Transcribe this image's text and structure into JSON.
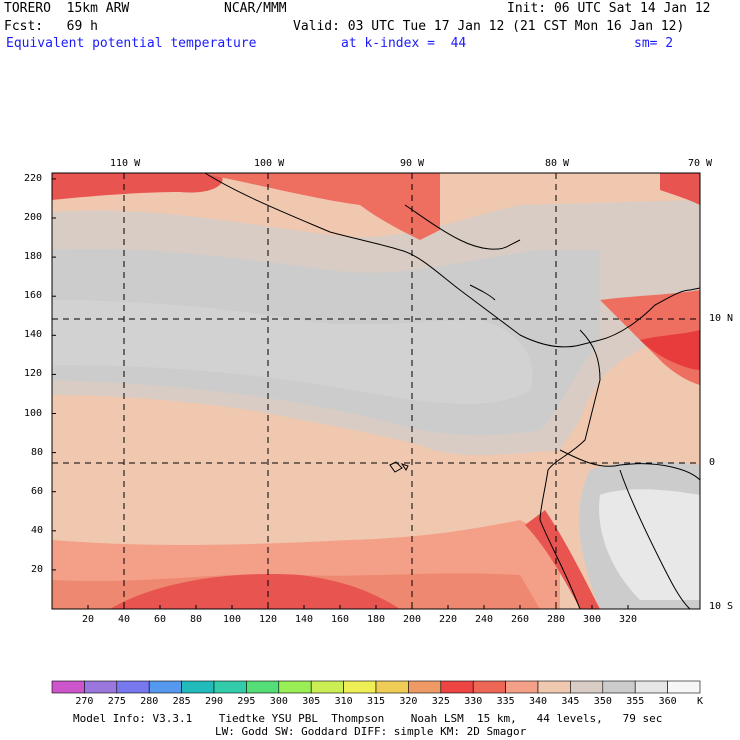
{
  "header": {
    "model": "TORERO  15km ARW",
    "center": "NCAR/MMM",
    "init": "Init: 06 UTC Sat 14 Jan 12",
    "fcst": "Fcst:   69 h",
    "valid": "Valid: 03 UTC Tue 17 Jan 12 (21 CST Mon 16 Jan 12)",
    "field": "Equivalent potential temperature",
    "level": "at k-index =  44",
    "smooth": "sm= 2"
  },
  "map": {
    "top_lon_labels": [
      "110 W",
      "100 W",
      "90 W",
      "80 W",
      "70 W"
    ],
    "right_lat_labels": [
      "10 N",
      "0",
      "10 S"
    ],
    "y_grid_labels": [
      "220",
      "200",
      "180",
      "160",
      "140",
      "120",
      "100",
      "80",
      "60",
      "40",
      "20"
    ],
    "x_grid_labels": [
      "20",
      "40",
      "60",
      "80",
      "100",
      "120",
      "140",
      "160",
      "180",
      "200",
      "220",
      "240",
      "260",
      "280",
      "300",
      "320"
    ]
  },
  "colorbar": {
    "unit": "K",
    "levels": [
      "270",
      "275",
      "280",
      "285",
      "290",
      "295",
      "300",
      "305",
      "310",
      "315",
      "320",
      "325",
      "330",
      "335",
      "340",
      "345",
      "350",
      "355",
      "360"
    ],
    "colors": [
      "#cc55cc",
      "#9977dd",
      "#7777ee",
      "#5599ee",
      "#22bbbb",
      "#33ccaa",
      "#55dd77",
      "#99ee55",
      "#ccee55",
      "#eeee55",
      "#eecc55",
      "#ee9966",
      "#ee4444",
      "#ee6655",
      "#f4a088",
      "#f0c8b0",
      "#d8ccc4",
      "#cccccc",
      "#e6e6e6",
      "#f6f6f6"
    ]
  },
  "footer": {
    "line1": "Model Info: V3.3.1    Tiedtke YSU PBL  Thompson    Noah LSM  15 km,   44 levels,   79 sec",
    "line2": "LW: Godd SW: Goddard DIFF: simple KM: 2D Smagor"
  }
}
